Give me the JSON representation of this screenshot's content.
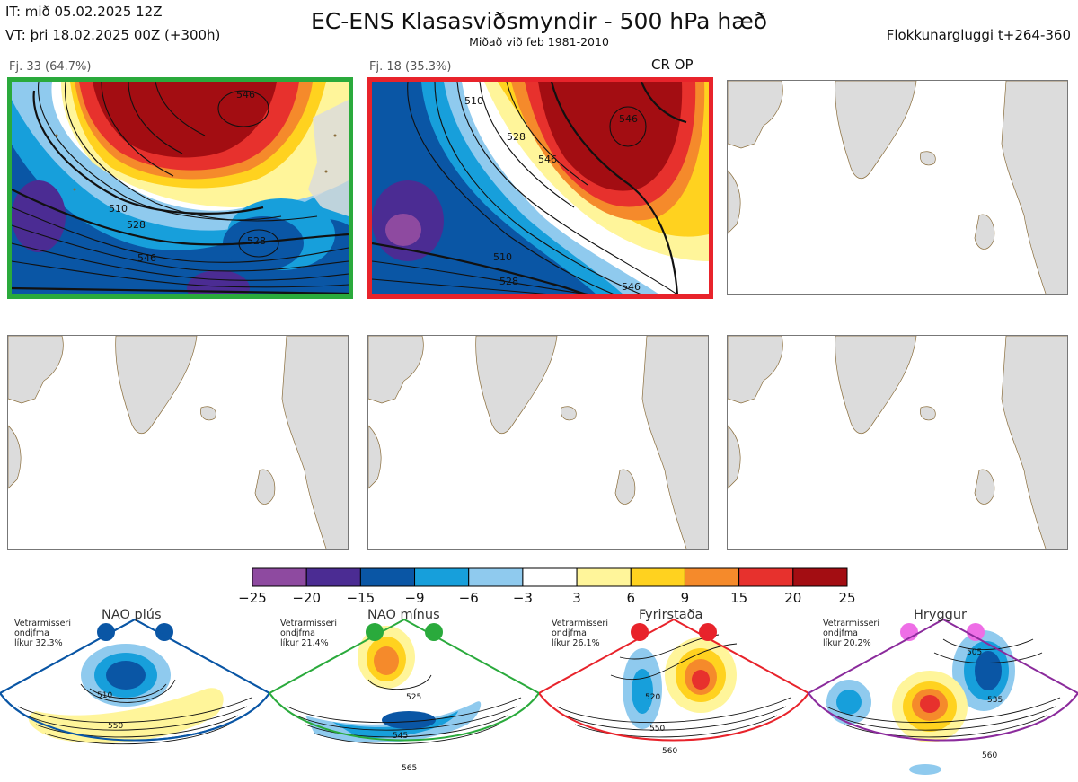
{
  "header": {
    "init_time": "IT: mið 05.02.2025 12Z",
    "valid_time": "VT: þri 18.02.2025 00Z  (+300h)",
    "title": "EC-ENS Klasasviðsmyndir - 500 hPa hæð",
    "subtitle": "Miðað við feb 1981-2010",
    "cluster_window": "Flokkunargluggi t+264-360"
  },
  "panels": [
    {
      "label": "Fj. 33 (64.7%)",
      "highlight": "green",
      "contour_labels": [
        "546",
        "510",
        "528",
        "546",
        "528",
        "546"
      ]
    },
    {
      "label": "Fj. 18 (35.3%)",
      "highlight": "red",
      "badge": "CR OP",
      "contour_labels": [
        "510",
        "528",
        "546",
        "546",
        "510",
        "528",
        "546"
      ]
    },
    {
      "label": "",
      "highlight": "none"
    },
    {
      "label": "",
      "highlight": "none"
    },
    {
      "label": "",
      "highlight": "none"
    },
    {
      "label": "",
      "highlight": "none"
    }
  ],
  "colorbar": {
    "labels": [
      "−25",
      "−20",
      "−15",
      "−9",
      "−6",
      "−3",
      "3",
      "6",
      "9",
      "15",
      "20",
      "25"
    ],
    "colors": [
      "#8e4aa0",
      "#4b2c93",
      "#0a56a5",
      "#179fdb",
      "#8fcaee",
      "#ffffff",
      "#fff59a",
      "#ffd21f",
      "#f58a2b",
      "#e7312d",
      "#a30d12"
    ]
  },
  "regimes": [
    {
      "name": "NAO plús",
      "desc": [
        "Vetrarmisseri",
        "ondjfma",
        "líkur 32,3%"
      ],
      "color": "#0a56a5",
      "contour_labels": [
        "510",
        "550"
      ]
    },
    {
      "name": "NAO mínus",
      "desc": [
        "Vetrarmisseri",
        "ondjfma",
        "líkur 21,4%"
      ],
      "color": "#2aaa3c",
      "contour_labels": [
        "525",
        "545",
        "565"
      ]
    },
    {
      "name": "Fyrirstaða",
      "desc": [
        "Vetrarmisseri",
        "ondjfma",
        "líkur 26,1%"
      ],
      "color": "#e8232b",
      "contour_labels": [
        "520",
        "550",
        "560"
      ]
    },
    {
      "name": "Hryggur",
      "desc": [
        "Vetrarmisseri",
        "ondjfma",
        "líkur 20,2%"
      ],
      "color": "#ee6ee6",
      "contour_labels": [
        "505",
        "535",
        "560"
      ]
    }
  ]
}
